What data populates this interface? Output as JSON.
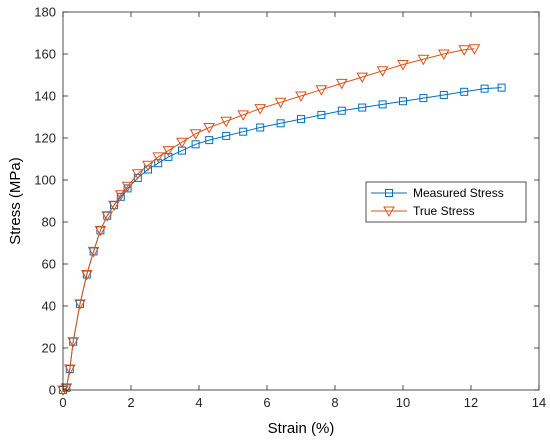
{
  "chart_data": {
    "type": "line",
    "title": "",
    "xlabel": "Strain (%)",
    "ylabel": "Stress (MPa)",
    "xlim": [
      0,
      14
    ],
    "ylim": [
      0,
      180
    ],
    "xticks": [
      0,
      2,
      4,
      6,
      8,
      10,
      12,
      14
    ],
    "yticks": [
      0,
      20,
      40,
      60,
      80,
      100,
      120,
      140,
      160,
      180
    ],
    "grid": false,
    "legend_position": "right-middle",
    "series": [
      {
        "name": "Measured Stress",
        "color": "#0072BD",
        "marker": "square",
        "x": [
          0.0,
          0.1,
          0.2,
          0.3,
          0.5,
          0.7,
          0.9,
          1.1,
          1.3,
          1.5,
          1.7,
          1.9,
          2.2,
          2.5,
          2.8,
          3.1,
          3.5,
          3.9,
          4.3,
          4.8,
          5.3,
          5.8,
          6.4,
          7.0,
          7.6,
          8.2,
          8.8,
          9.4,
          10.0,
          10.6,
          11.2,
          11.8,
          12.4,
          12.9
        ],
        "values": [
          0,
          1,
          10,
          23,
          41,
          55,
          66,
          76,
          83,
          88,
          92,
          96,
          101,
          105,
          108,
          111,
          114,
          117,
          119,
          121,
          123,
          125,
          127,
          129,
          131,
          133,
          134.5,
          136,
          137.5,
          139,
          140.5,
          142,
          143.5,
          144
        ]
      },
      {
        "name": "True Stress",
        "color": "#D95319",
        "marker": "triangle-down",
        "x": [
          0.0,
          0.1,
          0.2,
          0.3,
          0.5,
          0.7,
          0.9,
          1.1,
          1.3,
          1.5,
          1.7,
          1.9,
          2.2,
          2.5,
          2.8,
          3.1,
          3.5,
          3.9,
          4.3,
          4.8,
          5.3,
          5.8,
          6.4,
          7.0,
          7.6,
          8.2,
          8.8,
          9.4,
          10.0,
          10.6,
          11.2,
          11.8,
          12.1
        ],
        "values": [
          0,
          1,
          10,
          23,
          41,
          55,
          66,
          76,
          83,
          88,
          93,
          97,
          103,
          107,
          111,
          114,
          118,
          122,
          125,
          128,
          131,
          134,
          137,
          140,
          143,
          146,
          149,
          152,
          155,
          157.5,
          160,
          162,
          162.5
        ]
      }
    ]
  }
}
